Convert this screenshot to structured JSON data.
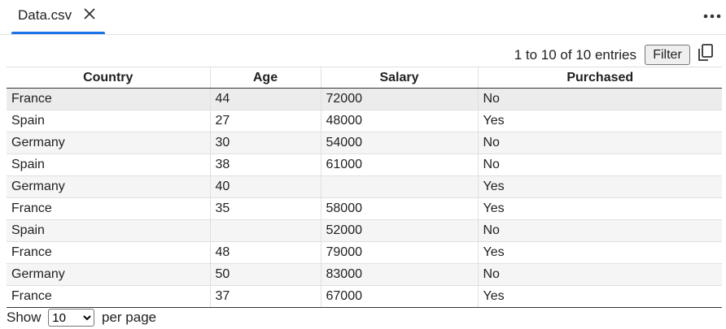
{
  "tab": {
    "label": "Data.csv"
  },
  "toolbar": {
    "entries_text": "1 to 10 of 10 entries",
    "filter_label": "Filter"
  },
  "table": {
    "columns": [
      "Country",
      "Age",
      "Salary",
      "Purchased"
    ],
    "rows": [
      [
        "France",
        "44",
        "72000",
        "No"
      ],
      [
        "Spain",
        "27",
        "48000",
        "Yes"
      ],
      [
        "Germany",
        "30",
        "54000",
        "No"
      ],
      [
        "Spain",
        "38",
        "61000",
        "No"
      ],
      [
        "Germany",
        "40",
        "",
        "Yes"
      ],
      [
        "France",
        "35",
        "58000",
        "Yes"
      ],
      [
        "Spain",
        "",
        "52000",
        "No"
      ],
      [
        "France",
        "48",
        "79000",
        "Yes"
      ],
      [
        "Germany",
        "50",
        "83000",
        "No"
      ],
      [
        "France",
        "37",
        "67000",
        "Yes"
      ]
    ]
  },
  "footer": {
    "show_label": "Show",
    "per_page_label": "per page",
    "per_page_value": "10"
  },
  "icons": {
    "close": "close-icon",
    "more": "more-horizontal-icon",
    "copy": "copy-icon"
  },
  "colors": {
    "accent": "#1a73e8"
  }
}
